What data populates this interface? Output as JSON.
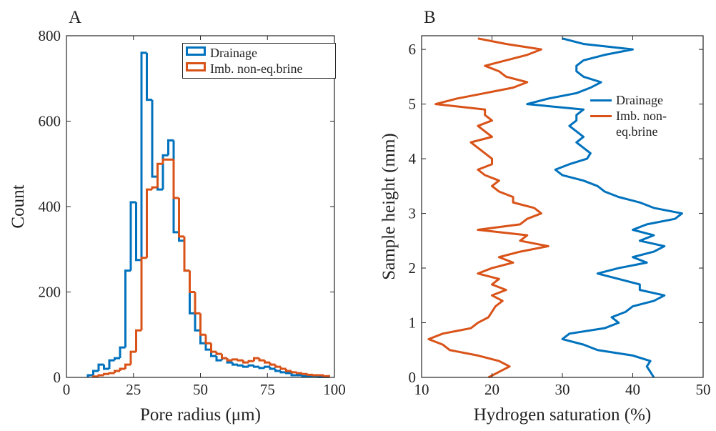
{
  "chart_data": [
    {
      "type": "histogram",
      "panel_label": "A",
      "xlabel": "Pore radius (μm)",
      "ylabel": "Count",
      "xlim": [
        0,
        100
      ],
      "ylim": [
        0,
        800
      ],
      "xticks": [
        0,
        25,
        50,
        75,
        100
      ],
      "yticks": [
        0,
        200,
        400,
        600,
        800
      ],
      "legend": "upper right",
      "series": [
        {
          "name": "Drainage",
          "color": "#0072bd",
          "bins": [
            8,
            10,
            12,
            14,
            16,
            18,
            20,
            22,
            24,
            26,
            28,
            30,
            32,
            34,
            36,
            38,
            40,
            42,
            44,
            46,
            48,
            50,
            52,
            54,
            56,
            58,
            60,
            62,
            64,
            66,
            68,
            70,
            72,
            74,
            76,
            78,
            80,
            82,
            84,
            86,
            88,
            90,
            92,
            94,
            96,
            98
          ],
          "values": [
            5,
            15,
            30,
            20,
            40,
            45,
            70,
            250,
            410,
            275,
            760,
            650,
            470,
            440,
            520,
            555,
            340,
            320,
            250,
            150,
            110,
            80,
            65,
            50,
            40,
            45,
            35,
            30,
            28,
            25,
            28,
            25,
            22,
            25,
            20,
            15,
            12,
            10,
            5,
            5,
            3,
            2,
            2,
            1,
            1
          ]
        },
        {
          "name": "Imb. non-eq.brine",
          "color": "#d95319",
          "bins": [
            10,
            12,
            14,
            16,
            18,
            20,
            22,
            24,
            26,
            28,
            30,
            32,
            34,
            36,
            38,
            40,
            42,
            44,
            46,
            48,
            50,
            52,
            54,
            56,
            58,
            60,
            62,
            64,
            66,
            68,
            70,
            72,
            74,
            76,
            78,
            80,
            82,
            84,
            86,
            88,
            90,
            92,
            94,
            96,
            98
          ],
          "values": [
            2,
            5,
            8,
            10,
            15,
            20,
            30,
            60,
            110,
            280,
            440,
            445,
            500,
            510,
            510,
            420,
            330,
            250,
            200,
            150,
            100,
            80,
            60,
            55,
            45,
            40,
            42,
            40,
            35,
            38,
            45,
            40,
            35,
            30,
            25,
            20,
            15,
            12,
            10,
            8,
            6,
            5,
            5,
            3
          ]
        }
      ]
    },
    {
      "type": "line",
      "panel_label": "B",
      "xlabel": "Hydrogen saturation (%)",
      "ylabel": "Sample height (mm)",
      "xlim": [
        10,
        50
      ],
      "ylim": [
        0,
        6.25
      ],
      "xticks": [
        10,
        20,
        30,
        40,
        50
      ],
      "yticks": [
        0,
        1,
        2,
        3,
        4,
        5,
        6
      ],
      "legend": "right",
      "y": [
        0,
        0.1,
        0.2,
        0.3,
        0.4,
        0.5,
        0.6,
        0.7,
        0.8,
        0.9,
        1,
        1.1,
        1.2,
        1.3,
        1.4,
        1.5,
        1.6,
        1.7,
        1.8,
        1.9,
        2,
        2.1,
        2.2,
        2.3,
        2.4,
        2.5,
        2.6,
        2.7,
        2.8,
        2.9,
        3,
        3.1,
        3.2,
        3.3,
        3.4,
        3.5,
        3.6,
        3.7,
        3.8,
        3.9,
        4,
        4.1,
        4.2,
        4.3,
        4.4,
        4.5,
        4.6,
        4.7,
        4.8,
        4.9,
        5,
        5.1,
        5.2,
        5.3,
        5.4,
        5.5,
        5.6,
        5.7,
        5.8,
        5.9,
        6,
        6.1,
        6.2
      ],
      "series": [
        {
          "name": "Drainage",
          "color": "#0072bd",
          "values": [
            43,
            42.5,
            42,
            42.5,
            40,
            35,
            33,
            30,
            31,
            36,
            38,
            37,
            39,
            40,
            43,
            44.5,
            41,
            41,
            38,
            35,
            38,
            42,
            40,
            43,
            44.5,
            41,
            43,
            40,
            42,
            46,
            47,
            43,
            41,
            38,
            36,
            35,
            33,
            30,
            29,
            31,
            33.5,
            34,
            33,
            32,
            33,
            32,
            31,
            32,
            32,
            33,
            25,
            28,
            32,
            34,
            35.5,
            33,
            32,
            32,
            33,
            36,
            40,
            33,
            30
          ]
        },
        {
          "name": "Imb. non-eq.brine",
          "color": "#d95319",
          "values": [
            19.5,
            21,
            22.5,
            21,
            18,
            14,
            13,
            11,
            13,
            17,
            18,
            19.5,
            20,
            20.5,
            21.5,
            20,
            22,
            20,
            21,
            18,
            20,
            23,
            21,
            24,
            28,
            24,
            25,
            18,
            24,
            25,
            27,
            26,
            23,
            23,
            21,
            20,
            21,
            19,
            18,
            20,
            20,
            19,
            18,
            17,
            20,
            19,
            18,
            20,
            19,
            19,
            12,
            15,
            19,
            23,
            25,
            22,
            21,
            19,
            22,
            25,
            27,
            22,
            18
          ]
        }
      ]
    }
  ]
}
